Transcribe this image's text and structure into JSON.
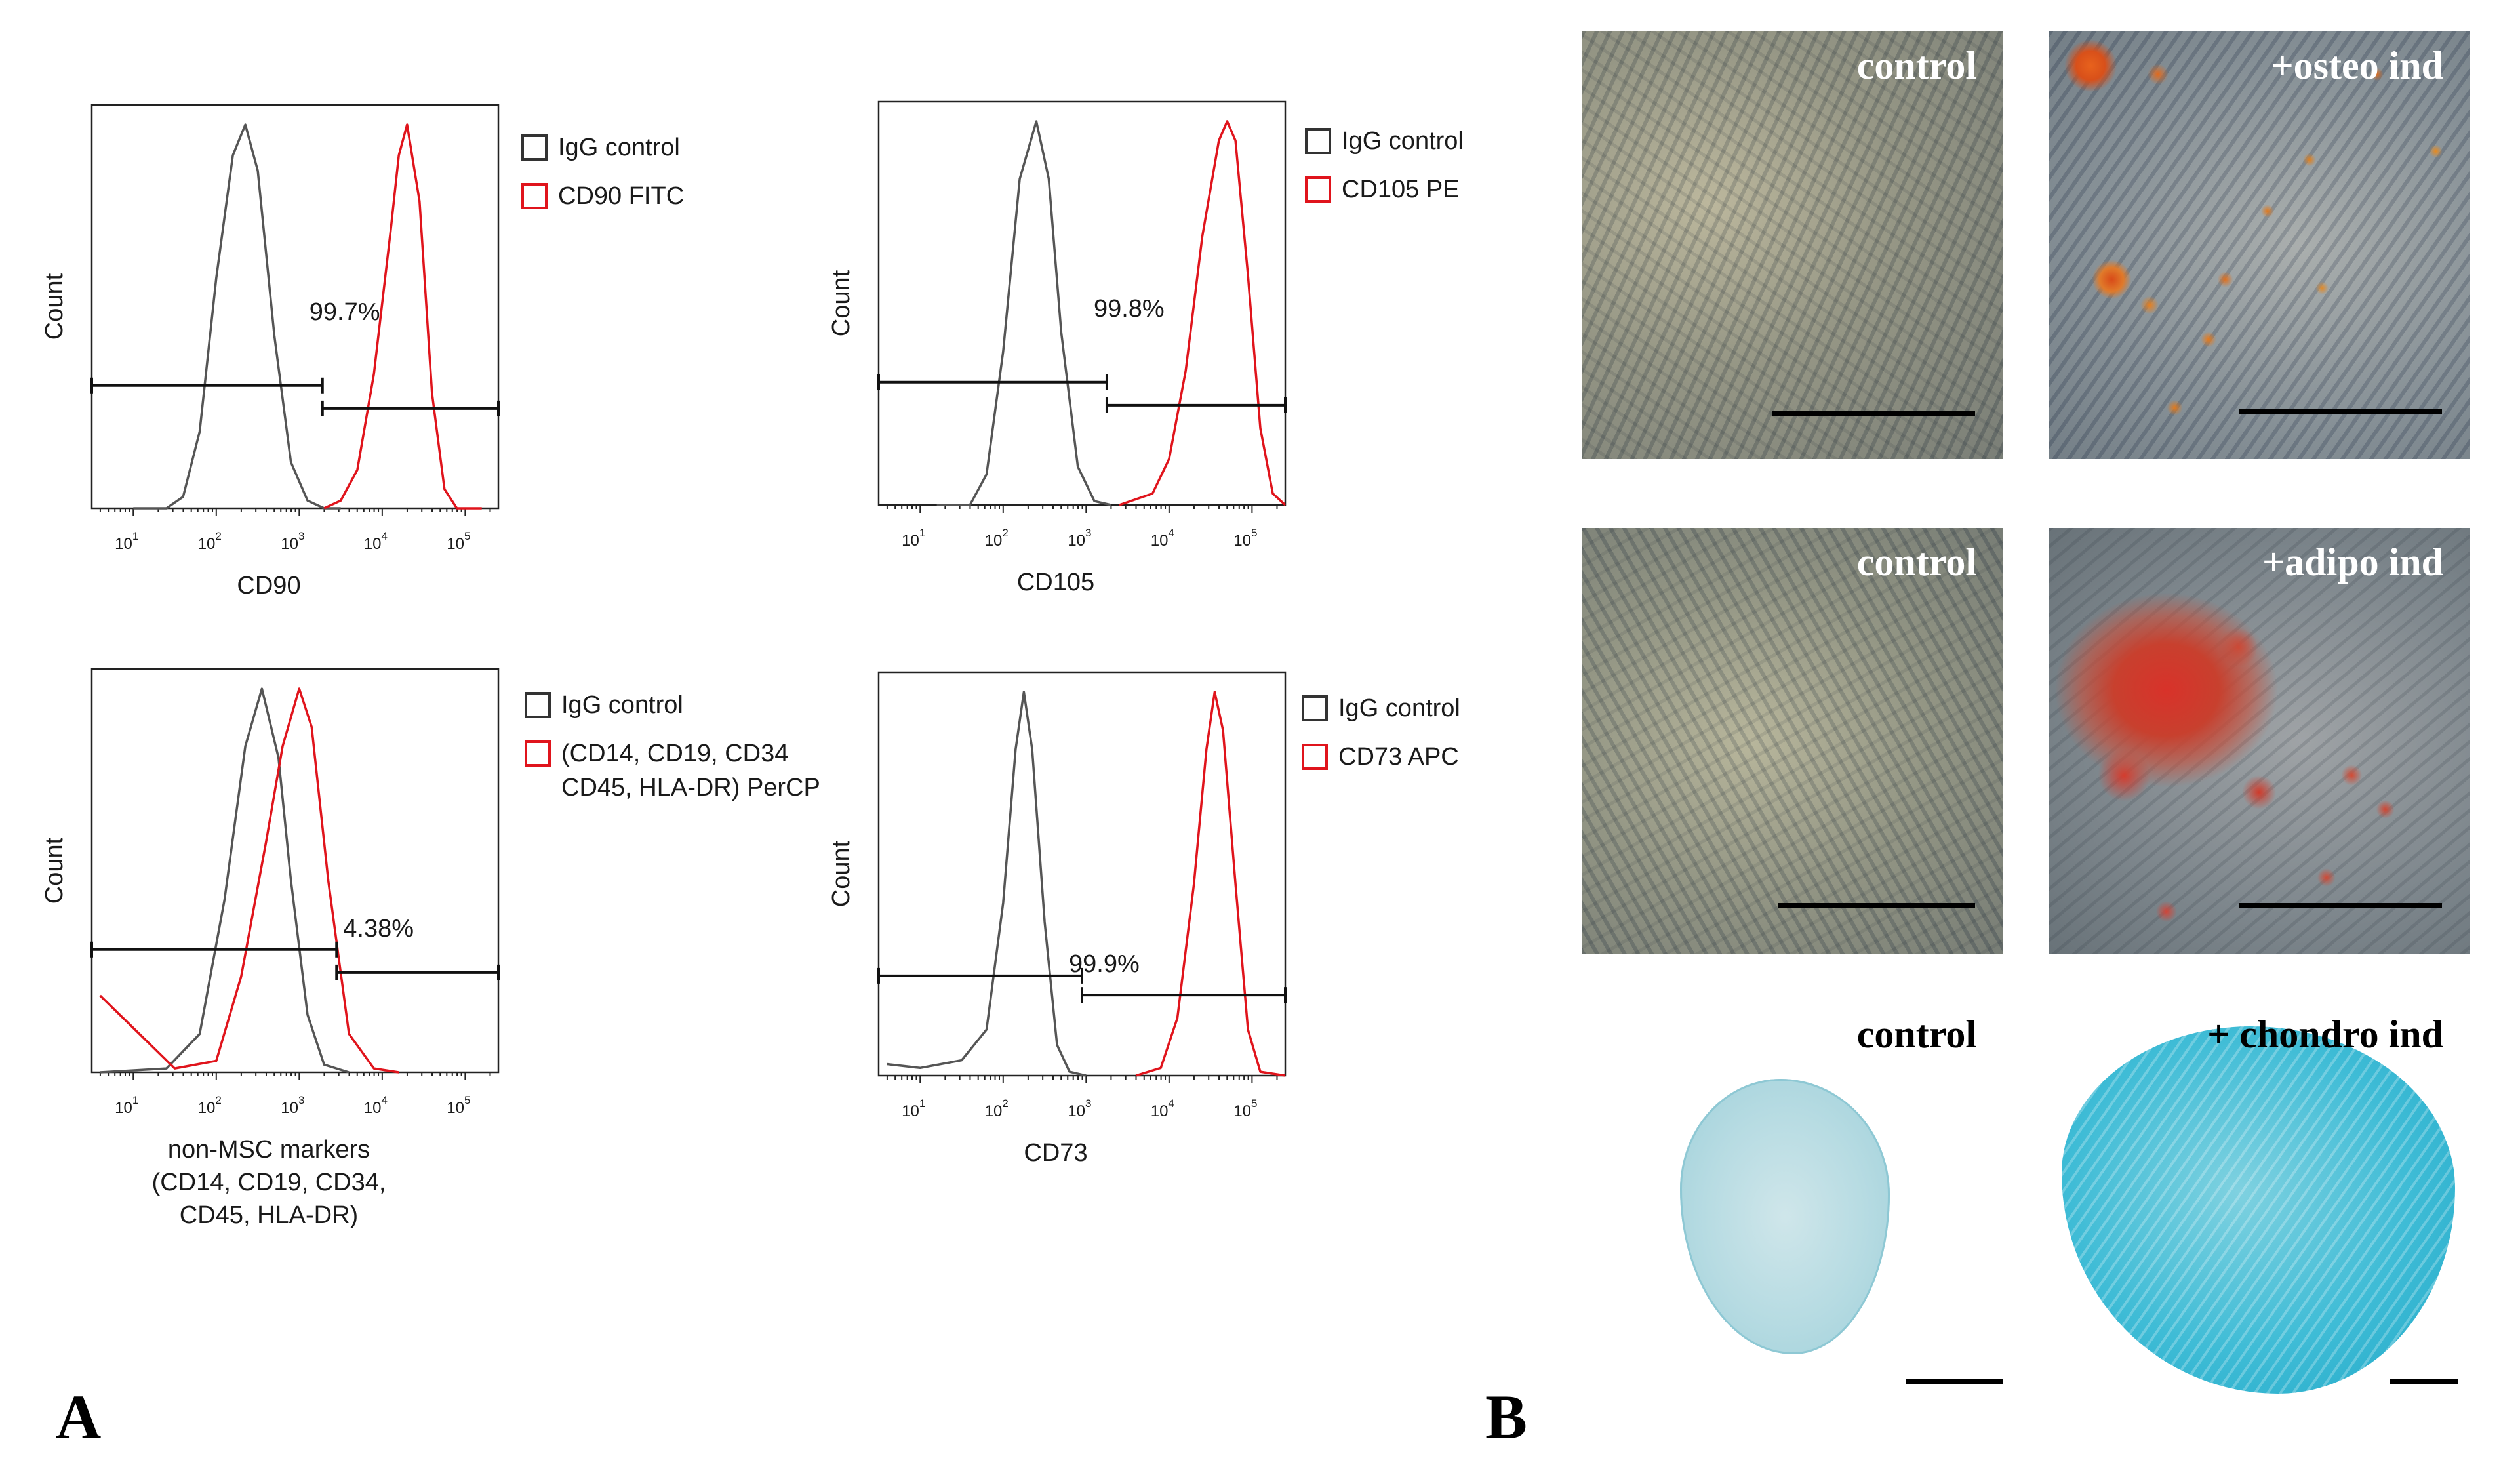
{
  "figure": {
    "panel_a_label": "A",
    "panel_b_label": "B"
  },
  "chart_data": [
    {
      "type": "line",
      "subtype": "flow-cytometry-histogram",
      "ylabel": "Count",
      "xlabel": "CD90",
      "xlabel_lines": [
        "CD90"
      ],
      "xscale": "log",
      "xlim_log10": [
        0.5,
        5.4
      ],
      "xticks": [
        {
          "base": "10",
          "exp": "1"
        },
        {
          "base": "10",
          "exp": "2"
        },
        {
          "base": "10",
          "exp": "3"
        },
        {
          "base": "10",
          "exp": "4"
        },
        {
          "base": "10",
          "exp": "5"
        }
      ],
      "series": [
        {
          "name": "IgG control",
          "color": "#555555",
          "x": [
            1.0,
            1.4,
            1.6,
            1.8,
            2.0,
            2.2,
            2.35,
            2.5,
            2.7,
            2.9,
            3.1,
            3.3,
            3.5
          ],
          "y": [
            0,
            0,
            0.03,
            0.2,
            0.6,
            0.92,
            1.0,
            0.88,
            0.45,
            0.12,
            0.02,
            0,
            0
          ]
        },
        {
          "name": "CD90 FITC",
          "color": "#e0141c",
          "x": [
            3.3,
            3.5,
            3.7,
            3.9,
            4.1,
            4.2,
            4.3,
            4.45,
            4.6,
            4.75,
            4.9,
            5.2
          ],
          "y": [
            0,
            0.02,
            0.1,
            0.35,
            0.72,
            0.92,
            1.0,
            0.8,
            0.3,
            0.05,
            0,
            0
          ]
        }
      ],
      "gates": [
        {
          "x1_log10": 0.5,
          "x2_log10": 3.28,
          "y_frac": 0.32,
          "label": ""
        },
        {
          "x1_log10": 3.28,
          "x2_log10": 5.4,
          "y_frac": 0.26,
          "label": "99.7%"
        }
      ]
    },
    {
      "type": "line",
      "subtype": "flow-cytometry-histogram",
      "ylabel": "Count",
      "xlabel": "CD105",
      "xlabel_lines": [
        "CD105"
      ],
      "xscale": "log",
      "xlim_log10": [
        0.5,
        5.4
      ],
      "xticks": [
        {
          "base": "10",
          "exp": "1"
        },
        {
          "base": "10",
          "exp": "2"
        },
        {
          "base": "10",
          "exp": "3"
        },
        {
          "base": "10",
          "exp": "4"
        },
        {
          "base": "10",
          "exp": "5"
        }
      ],
      "series": [
        {
          "name": "IgG control",
          "color": "#555555",
          "x": [
            1.2,
            1.6,
            1.8,
            2.0,
            2.2,
            2.4,
            2.55,
            2.7,
            2.9,
            3.1,
            3.3
          ],
          "y": [
            0,
            0,
            0.08,
            0.4,
            0.85,
            1.0,
            0.85,
            0.45,
            0.1,
            0.01,
            0
          ]
        },
        {
          "name": "CD105 PE",
          "color": "#e0141c",
          "x": [
            3.4,
            3.8,
            4.0,
            4.2,
            4.4,
            4.6,
            4.7,
            4.8,
            4.95,
            5.1,
            5.25,
            5.4
          ],
          "y": [
            0,
            0.03,
            0.12,
            0.35,
            0.7,
            0.95,
            1.0,
            0.95,
            0.6,
            0.2,
            0.03,
            0
          ]
        }
      ],
      "gates": [
        {
          "x1_log10": 0.5,
          "x2_log10": 3.25,
          "y_frac": 0.32,
          "label": ""
        },
        {
          "x1_log10": 3.25,
          "x2_log10": 5.4,
          "y_frac": 0.26,
          "label": "99.8%"
        }
      ]
    },
    {
      "type": "line",
      "subtype": "flow-cytometry-histogram",
      "ylabel": "Count",
      "xlabel": "non-MSC markers (CD14, CD19, CD34, CD45, HLA-DR)",
      "xlabel_lines": [
        "non-MSC markers",
        "(CD14, CD19, CD34,",
        "CD45, HLA-DR)"
      ],
      "xscale": "log",
      "xlim_log10": [
        0.5,
        5.4
      ],
      "xticks": [
        {
          "base": "10",
          "exp": "1"
        },
        {
          "base": "10",
          "exp": "2"
        },
        {
          "base": "10",
          "exp": "3"
        },
        {
          "base": "10",
          "exp": "4"
        },
        {
          "base": "10",
          "exp": "5"
        }
      ],
      "series": [
        {
          "name": "IgG control",
          "color": "#555555",
          "x": [
            0.6,
            1.4,
            1.8,
            2.1,
            2.35,
            2.55,
            2.75,
            2.9,
            3.1,
            3.3,
            3.6
          ],
          "y": [
            0,
            0.01,
            0.1,
            0.45,
            0.85,
            1.0,
            0.82,
            0.5,
            0.15,
            0.02,
            0
          ]
        },
        {
          "name": "(CD14, CD19, CD34 CD45, HLA-DR) PerCP",
          "color": "#e0141c",
          "x": [
            0.6,
            1.5,
            2.0,
            2.3,
            2.6,
            2.8,
            3.0,
            3.15,
            3.35,
            3.6,
            3.9,
            4.2
          ],
          "y": [
            0.2,
            0.01,
            0.03,
            0.25,
            0.6,
            0.85,
            1.0,
            0.9,
            0.5,
            0.1,
            0.01,
            0
          ]
        }
      ],
      "gates": [
        {
          "x1_log10": 0.5,
          "x2_log10": 3.45,
          "y_frac": 0.32,
          "label": ""
        },
        {
          "x1_log10": 3.45,
          "x2_log10": 5.4,
          "y_frac": 0.26,
          "label": "4.38%"
        }
      ]
    },
    {
      "type": "line",
      "subtype": "flow-cytometry-histogram",
      "ylabel": "Count",
      "xlabel": "CD73",
      "xlabel_lines": [
        "CD73"
      ],
      "xscale": "log",
      "xlim_log10": [
        0.5,
        5.4
      ],
      "xticks": [
        {
          "base": "10",
          "exp": "1"
        },
        {
          "base": "10",
          "exp": "2"
        },
        {
          "base": "10",
          "exp": "3"
        },
        {
          "base": "10",
          "exp": "4"
        },
        {
          "base": "10",
          "exp": "5"
        }
      ],
      "series": [
        {
          "name": "IgG control",
          "color": "#555555",
          "x": [
            0.6,
            1.0,
            1.5,
            1.8,
            2.0,
            2.15,
            2.25,
            2.35,
            2.5,
            2.65,
            2.8,
            3.0
          ],
          "y": [
            0.03,
            0.02,
            0.04,
            0.12,
            0.45,
            0.85,
            1.0,
            0.85,
            0.4,
            0.08,
            0.01,
            0
          ]
        },
        {
          "name": "CD73 APC",
          "color": "#e0141c",
          "x": [
            3.6,
            3.9,
            4.1,
            4.3,
            4.45,
            4.55,
            4.65,
            4.8,
            4.95,
            5.1,
            5.4
          ],
          "y": [
            0,
            0.02,
            0.15,
            0.5,
            0.85,
            1.0,
            0.9,
            0.5,
            0.12,
            0.01,
            0
          ]
        }
      ],
      "gates": [
        {
          "x1_log10": 0.5,
          "x2_log10": 2.95,
          "y_frac": 0.26,
          "label": ""
        },
        {
          "x1_log10": 2.95,
          "x2_log10": 5.4,
          "y_frac": 0.21,
          "label": "99.9%"
        }
      ]
    }
  ],
  "micrographs": [
    {
      "label": "control",
      "stain": "phase-contrast"
    },
    {
      "label": "+osteo ind",
      "stain": "alizarin-red"
    },
    {
      "label": "control",
      "stain": "phase-contrast"
    },
    {
      "label": "+adipo ind",
      "stain": "oil-red-o"
    },
    {
      "label": "control",
      "stain": "alcian-blue-faint"
    },
    {
      "label": "+ chondro ind",
      "stain": "alcian-blue-strong"
    }
  ]
}
